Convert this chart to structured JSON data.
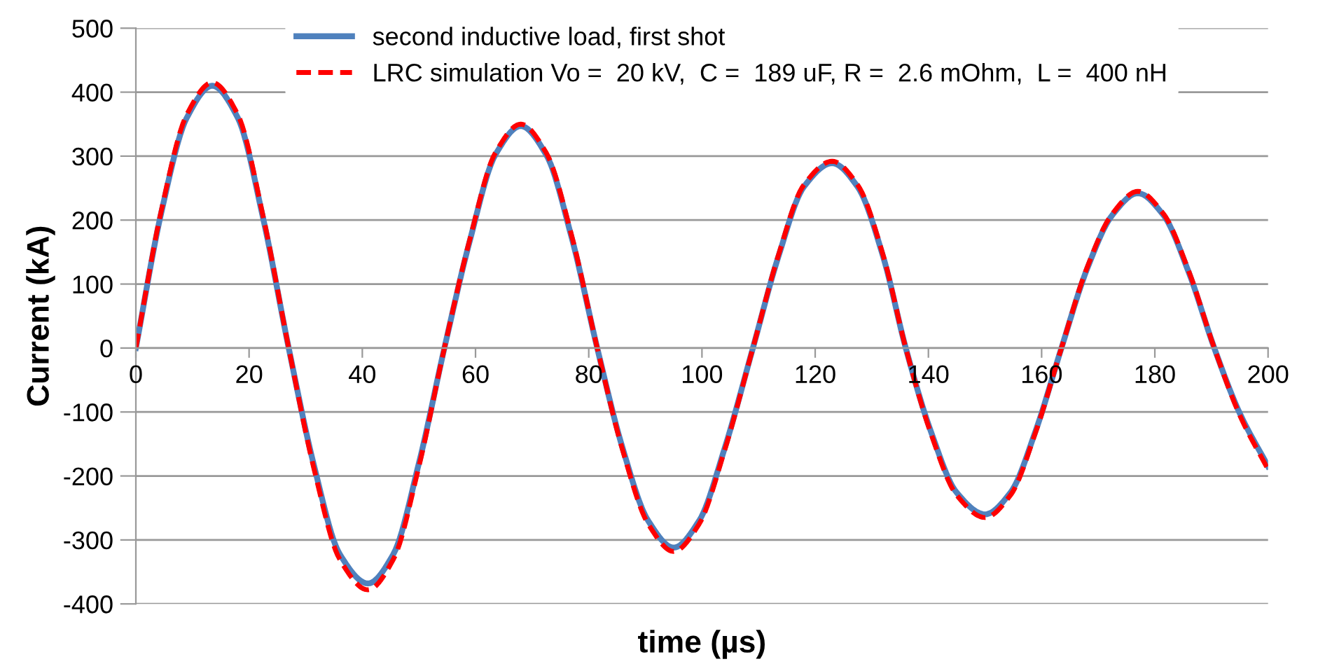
{
  "chart_data": {
    "type": "line",
    "xlabel": "time (µs)",
    "ylabel": "Current (kA)",
    "x": [
      0,
      4.5,
      9,
      13.5,
      18,
      22.5,
      27,
      31.5,
      36,
      41,
      45.5,
      50,
      54.5,
      59,
      63.5,
      68,
      72.5,
      77,
      81.5,
      86,
      90.5,
      95,
      99.5,
      104,
      109,
      113.5,
      118,
      123,
      127.5,
      132,
      136,
      140.5,
      145,
      150,
      154.5,
      159,
      163.5,
      168,
      172.5,
      177,
      181.5,
      186,
      190.5,
      195,
      200
    ],
    "series": [
      {
        "name": "second inductive load, first shot",
        "color": "#4f81bd",
        "line_style": "solid",
        "values": [
          0,
          212,
          360,
          410,
          360,
          202,
          0,
          -185,
          -322,
          -368,
          -322,
          -180,
          0,
          168,
          302,
          347,
          302,
          172,
          0,
          -157,
          -270,
          -312,
          -270,
          -157,
          0,
          143,
          252,
          289,
          252,
          143,
          0,
          -132,
          -226,
          -260,
          -226,
          -128,
          0,
          123,
          208,
          242,
          208,
          118,
          0,
          -102,
          -185
        ]
      },
      {
        "name": "LRC simulation Vo =  20 kV,  C =  189 uF, R =  2.6 mOhm,  L =  400 nH",
        "color": "#ff0000",
        "line_style": "dashed",
        "values": [
          0,
          215,
          365,
          415,
          365,
          205,
          0,
          -190,
          -330,
          -378,
          -330,
          -185,
          0,
          170,
          305,
          350,
          305,
          175,
          0,
          -160,
          -275,
          -318,
          -275,
          -160,
          0,
          145,
          255,
          292,
          255,
          145,
          0,
          -135,
          -230,
          -265,
          -230,
          -130,
          0,
          125,
          210,
          245,
          210,
          120,
          0,
          -105,
          -190
        ]
      }
    ],
    "xlim": [
      0,
      200
    ],
    "xticks": [
      0,
      20,
      40,
      60,
      80,
      100,
      120,
      140,
      160,
      180,
      200
    ],
    "ylim": [
      -400,
      500
    ],
    "yticks": [
      -400,
      -300,
      -200,
      -100,
      0,
      100,
      200,
      300,
      400,
      500
    ],
    "grid": "y",
    "legend": "top right",
    "marker": "none"
  }
}
